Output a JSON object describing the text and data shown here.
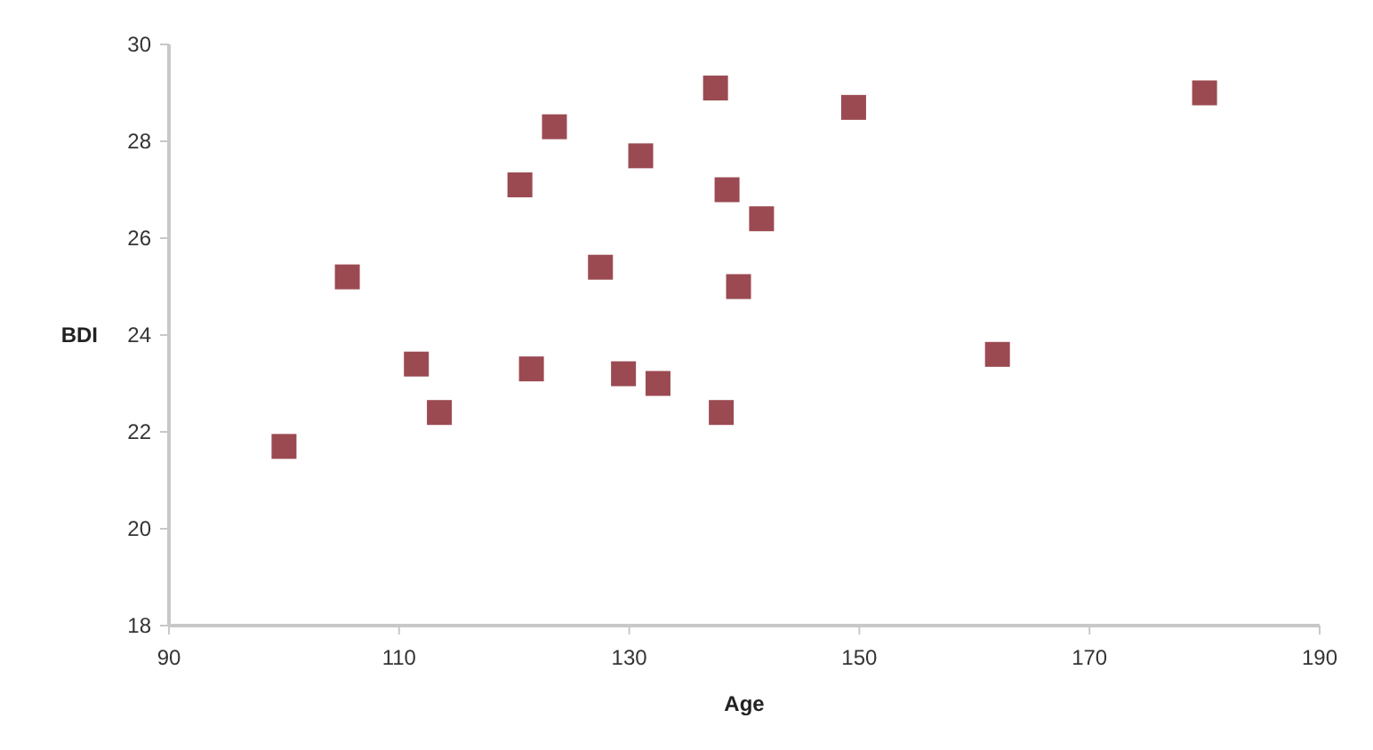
{
  "chart_data": {
    "type": "scatter",
    "xlabel": "Age",
    "ylabel": "BDI",
    "x": [
      100,
      105.5,
      111.5,
      113.5,
      120.5,
      121.5,
      123.5,
      127.5,
      129.5,
      131,
      132.5,
      137.5,
      138.5,
      138,
      139.5,
      141.5,
      149.5,
      162,
      180
    ],
    "values": [
      21.7,
      25.2,
      23.4,
      22.4,
      27.1,
      23.3,
      28.3,
      25.4,
      23.2,
      27.7,
      23.0,
      29.1,
      27.0,
      22.4,
      25.0,
      26.4,
      28.7,
      23.6,
      29.0
    ],
    "color": "#9b4a52",
    "marker": "square",
    "xlim": [
      90,
      190
    ],
    "xticks": [
      90,
      110,
      130,
      150,
      170,
      190
    ],
    "ylim": [
      18,
      30
    ],
    "yticks": [
      18,
      20,
      22,
      24,
      26,
      28,
      30
    ],
    "grid": false
  }
}
